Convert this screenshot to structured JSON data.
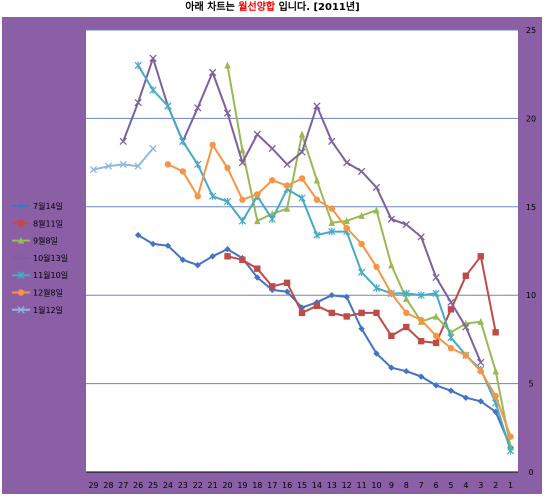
{
  "title": {
    "prefix": "아래 차트는 ",
    "highlight": "월선양합",
    "suffix": " 입니다. [2011년]"
  },
  "colors": {
    "plot_bg": "#ffffff",
    "outer_bg": "#8a5fa5",
    "grid": "#6a86c5"
  },
  "chart_data": {
    "type": "line",
    "title": "아래 차트는 월선양합 입니다. [2011년]",
    "x": [
      29,
      28,
      27,
      26,
      25,
      24,
      23,
      22,
      21,
      20,
      19,
      18,
      17,
      16,
      15,
      14,
      13,
      12,
      11,
      10,
      9,
      8,
      7,
      6,
      5,
      4,
      3,
      2,
      1
    ],
    "ylim": [
      0,
      25
    ],
    "yticks": [
      0,
      5,
      10,
      15,
      20,
      25
    ],
    "x_reversed": true,
    "grid": true,
    "legend_position": "left",
    "series": [
      {
        "name": "7월14일",
        "color": "#4472c4",
        "marker": "diamond",
        "values": [
          null,
          null,
          null,
          13.4,
          12.9,
          12.8,
          12.0,
          11.7,
          12.2,
          12.6,
          12.1,
          11.0,
          10.3,
          10.2,
          9.3,
          9.6,
          10.0,
          9.9,
          8.1,
          6.7,
          5.9,
          5.7,
          5.4,
          4.9,
          4.6,
          4.2,
          4.0,
          3.4,
          1.4
        ]
      },
      {
        "name": "8월11일",
        "color": "#be4b48",
        "marker": "square",
        "values": [
          null,
          null,
          null,
          null,
          null,
          null,
          null,
          null,
          null,
          12.2,
          12.0,
          11.5,
          10.5,
          10.7,
          9.0,
          9.4,
          9.0,
          8.8,
          9.0,
          9.0,
          7.7,
          8.2,
          7.4,
          7.3,
          9.2,
          11.1,
          12.2,
          7.9,
          null
        ]
      },
      {
        "name": "9월8일",
        "color": "#98b954",
        "marker": "triangle",
        "values": [
          null,
          null,
          null,
          null,
          null,
          null,
          null,
          null,
          null,
          23.0,
          18.2,
          14.2,
          14.6,
          14.9,
          19.1,
          16.5,
          14.1,
          14.2,
          14.5,
          14.8,
          11.7,
          9.8,
          8.5,
          8.8,
          7.9,
          8.4,
          8.5,
          5.7,
          1.4
        ]
      },
      {
        "name": "10월13일",
        "color": "#7d60a0",
        "marker": "x",
        "values": [
          null,
          null,
          18.7,
          20.9,
          23.4,
          20.7,
          18.7,
          20.6,
          22.6,
          20.3,
          17.5,
          19.1,
          18.3,
          17.4,
          18.1,
          20.7,
          18.7,
          17.5,
          17.0,
          16.1,
          14.3,
          14.0,
          13.3,
          11.0,
          9.6,
          8.2,
          6.2,
          null,
          null
        ]
      },
      {
        "name": "11월10일",
        "color": "#46aac5",
        "marker": "star",
        "values": [
          null,
          null,
          null,
          23.0,
          21.6,
          20.7,
          18.7,
          17.4,
          15.6,
          15.3,
          14.2,
          15.6,
          14.3,
          16.0,
          15.5,
          13.4,
          13.6,
          13.6,
          11.3,
          10.4,
          10.1,
          10.1,
          10.0,
          10.1,
          7.6,
          6.6,
          5.8,
          3.9,
          1.2
        ]
      },
      {
        "name": "12월8일",
        "color": "#f69546",
        "marker": "circle",
        "values": [
          null,
          null,
          null,
          null,
          null,
          17.4,
          17.0,
          15.6,
          18.5,
          17.2,
          15.4,
          15.7,
          16.5,
          16.2,
          16.6,
          15.4,
          14.9,
          13.8,
          12.9,
          11.6,
          10.1,
          9.0,
          8.6,
          7.7,
          7.0,
          6.6,
          5.7,
          4.3,
          2.0
        ]
      },
      {
        "name": "1월12일",
        "color": "#8fb6e5",
        "marker": "x",
        "values": [
          17.1,
          17.3,
          17.4,
          17.3,
          18.3,
          null,
          null,
          null,
          null,
          null,
          null,
          null,
          null,
          null,
          null,
          null,
          null,
          null,
          null,
          null,
          null,
          null,
          null,
          null,
          null,
          null,
          null,
          null,
          null
        ]
      }
    ]
  }
}
